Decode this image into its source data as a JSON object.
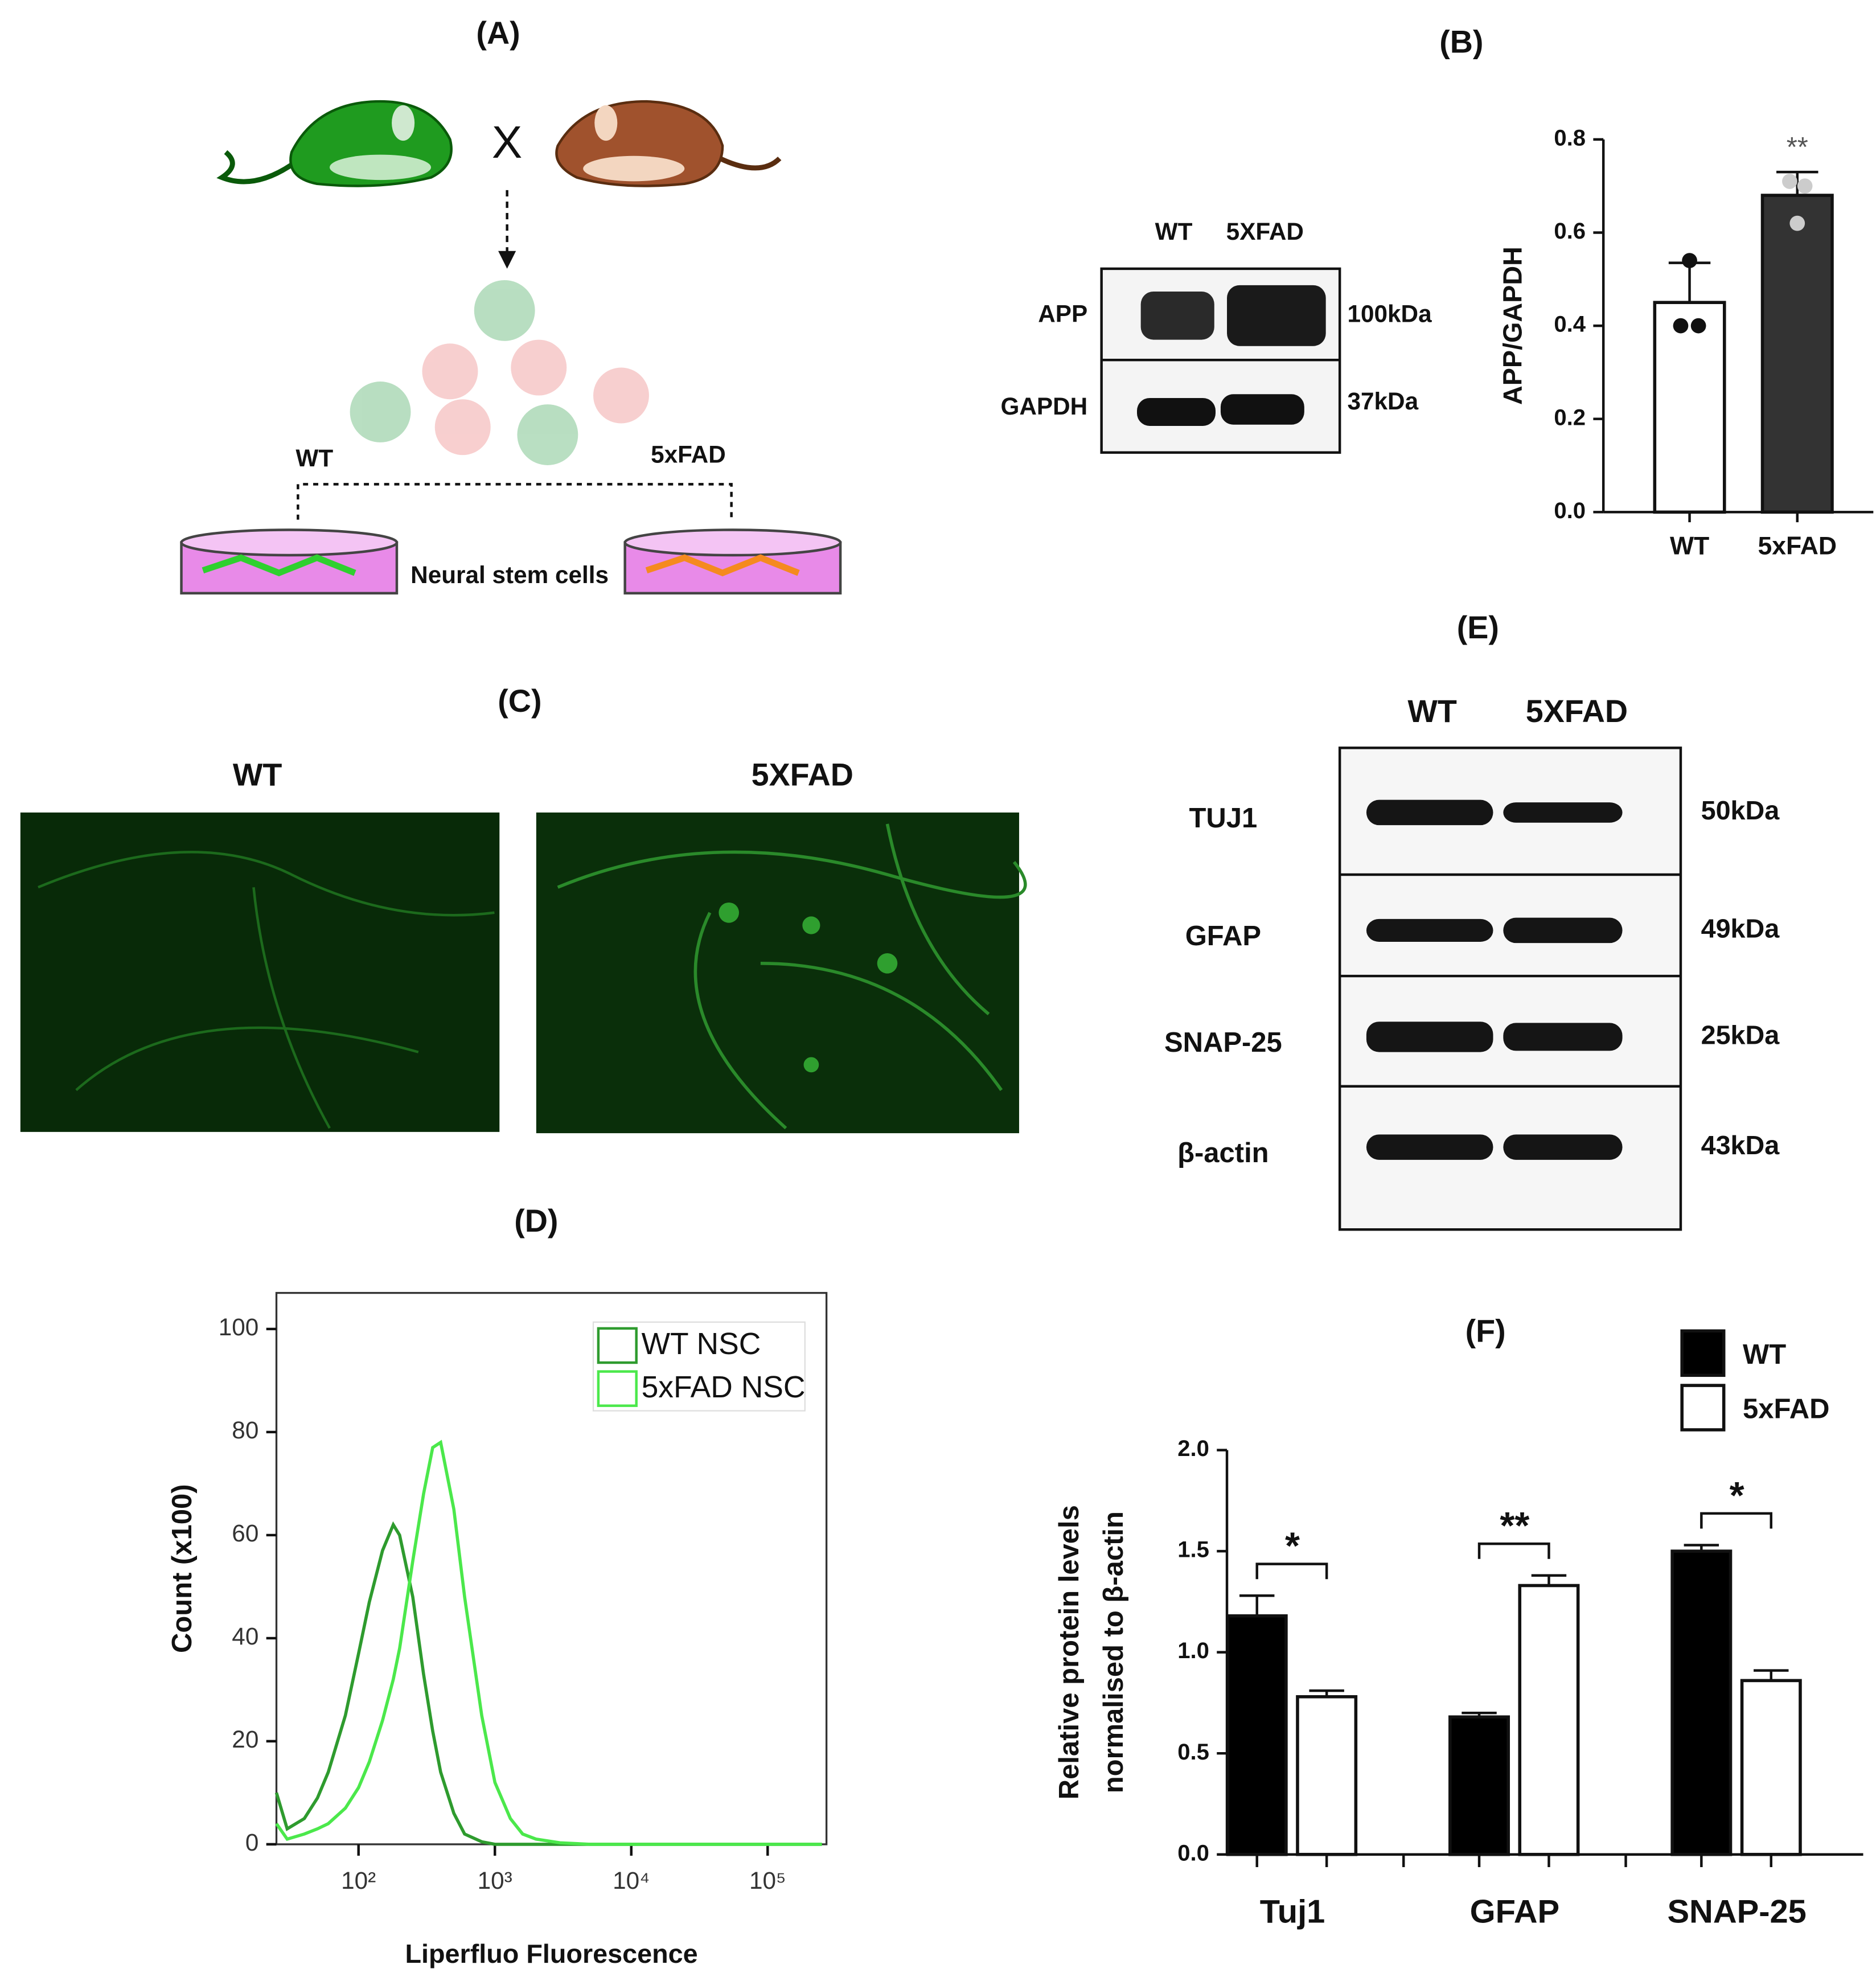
{
  "figure": {
    "panel_a": {
      "label": "(A)",
      "cross": "X",
      "left": "WT",
      "right": "5xFAD",
      "cells": "Neural stem cells"
    },
    "panel_b_blot": {
      "lanes": [
        "WT",
        "5XFAD"
      ],
      "rows": [
        "APP",
        "GAPDH"
      ],
      "sizes": [
        "100kDa",
        "37kDa"
      ]
    },
    "panel_c": {
      "label": "(C)",
      "images": [
        "WT",
        "5XFAD"
      ]
    },
    "panel_e": {
      "label": "(E)",
      "lanes": [
        "WT",
        "5XFAD"
      ],
      "rows": [
        "TUJ1",
        "GFAP",
        "SNAP-25",
        "β-actin"
      ],
      "sizes": [
        "50kDa",
        "49kDa",
        "25kDa",
        "43kDa"
      ]
    }
  },
  "chart_data": [
    {
      "type": "bar",
      "title": "(B)",
      "ylabel": "APP/GAPDH",
      "categories": [
        "WT",
        "5xFAD"
      ],
      "values": [
        0.45,
        0.68
      ],
      "errors": [
        0.085,
        0.05
      ],
      "colors": [
        "#ffffff",
        "#333333"
      ],
      "points": [
        [
          0.54,
          0.4,
          0.4
        ],
        [
          0.71,
          0.7,
          0.62
        ]
      ],
      "point_colors": [
        "#111111",
        "#cccccc"
      ],
      "annotation": "**",
      "ylim": [
        0,
        0.8
      ],
      "yticks": [
        {
          "value": 0,
          "label": "0.0"
        },
        0.2,
        0.4,
        0.6,
        0.8
      ]
    },
    {
      "type": "line",
      "title": "(D)",
      "xlabel": "Liperfluo Fluorescence",
      "ylabel": "Count (x100)",
      "xscale": "log",
      "x": [
        25,
        30,
        40,
        50,
        60,
        80,
        100,
        120,
        150,
        180,
        200,
        250,
        300,
        350,
        400,
        500,
        600,
        800,
        1000,
        1300,
        1600,
        2000,
        3000,
        5000,
        10000,
        100000,
        250000
      ],
      "series": [
        {
          "name": "WT NSC",
          "color": "#2e9b2e",
          "values": [
            10,
            3,
            5,
            9,
            14,
            25,
            37,
            47,
            57,
            62,
            60,
            48,
            33,
            22,
            14,
            6,
            2,
            0.5,
            0,
            0,
            0,
            0,
            0,
            0,
            0,
            0,
            0
          ]
        },
        {
          "name": "5xFAD NSC",
          "color": "#4be84b",
          "values": [
            4,
            1,
            2,
            3,
            4,
            7,
            11,
            16,
            24,
            32,
            38,
            55,
            68,
            77,
            78,
            65,
            48,
            25,
            12,
            5,
            2,
            1,
            0.3,
            0,
            0,
            0,
            0
          ]
        }
      ],
      "legend": "upper right",
      "xlim": [
        25,
        270000
      ],
      "xticks": [
        {
          "value": 100,
          "label": "10²"
        },
        {
          "value": 1000,
          "label": "10³"
        },
        {
          "value": 10000,
          "label": "10⁴"
        },
        {
          "value": 100000,
          "label": "10⁵"
        }
      ],
      "ylim": [
        0,
        107
      ],
      "yticks": [
        0,
        20,
        40,
        60,
        80,
        100
      ]
    },
    {
      "type": "bar",
      "title": "(F)",
      "ylabel": [
        "Relative protein levels",
        "normalised to β-actin"
      ],
      "categories": [
        "Tuj1",
        "GFAP",
        "SNAP-25"
      ],
      "series": [
        {
          "name": "WT",
          "color": "#000000",
          "values": [
            1.18,
            0.68,
            1.5
          ],
          "errors": [
            0.1,
            0.02,
            0.03
          ]
        },
        {
          "name": "5xFAD",
          "color": "#ffffff",
          "values": [
            0.78,
            1.33,
            0.86
          ],
          "errors": [
            0.03,
            0.05,
            0.05
          ]
        }
      ],
      "annotations": [
        "*",
        "**",
        "*"
      ],
      "legend": "upper right",
      "ylim": [
        0,
        2
      ],
      "yticks": [
        {
          "value": 0,
          "label": "0.0"
        },
        0.5,
        {
          "value": 1,
          "label": "1.0"
        },
        1.5,
        {
          "value": 2,
          "label": "2.0"
        }
      ]
    }
  ]
}
